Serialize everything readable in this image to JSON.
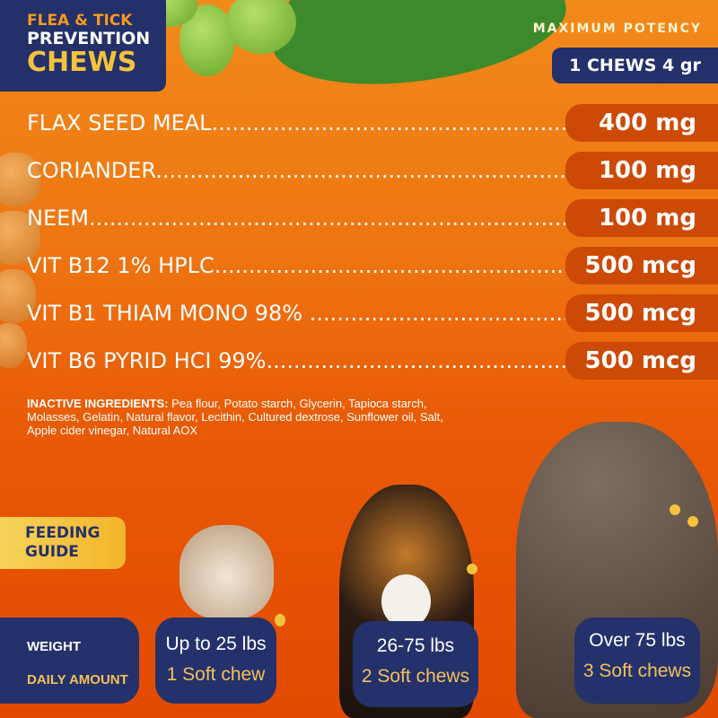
{
  "header": {
    "title_line1": "FLEA & TICK",
    "title_line2": "PREVENTION",
    "title_line3": "CHEWS",
    "potency": "MAXIMUM POTENCY",
    "serving": "1 CHEWS 4 gr"
  },
  "ingredients": [
    {
      "name": "FLAX SEED MEAL",
      "amount": "400 mg"
    },
    {
      "name": "CORIANDER",
      "amount": "100 mg"
    },
    {
      "name": "NEEM",
      "amount": "100 mg"
    },
    {
      "name": "VIT B12 1% HPLC",
      "amount": "500 mcg"
    },
    {
      "name": "VIT B1 THIAM MONO 98% ",
      "amount": "500 mcg"
    },
    {
      "name": "VIT B6 PYRID HCI 99%",
      "amount": "500 mcg"
    }
  ],
  "inactive": {
    "label": "INACTIVE INGREDIENTS:",
    "text": " Pea flour, Potato starch, Glycerin, Tapioca starch, Molasses, Gelatin, Natural flavor, Lecithin, Cultured dextrose, Sunflower oil, Salt, Apple cider vinegar, Natural AOX"
  },
  "feeding": {
    "line1": "FEEDING",
    "line2": "GUIDE",
    "weight_label": "WEIGHT",
    "amount_label": "DAILY AMOUNT",
    "tiers": [
      {
        "weight": "Up to 25 lbs",
        "amount": "1 Soft chew"
      },
      {
        "weight": "26-75 lbs",
        "amount": "2 Soft chews"
      },
      {
        "weight": "Over 75 lbs",
        "amount": "3 Soft chews"
      }
    ]
  },
  "colors": {
    "navy": "#23306a",
    "orange": "#ee7512",
    "gold": "#f4c23c",
    "value_pill": "#cc4a06"
  }
}
